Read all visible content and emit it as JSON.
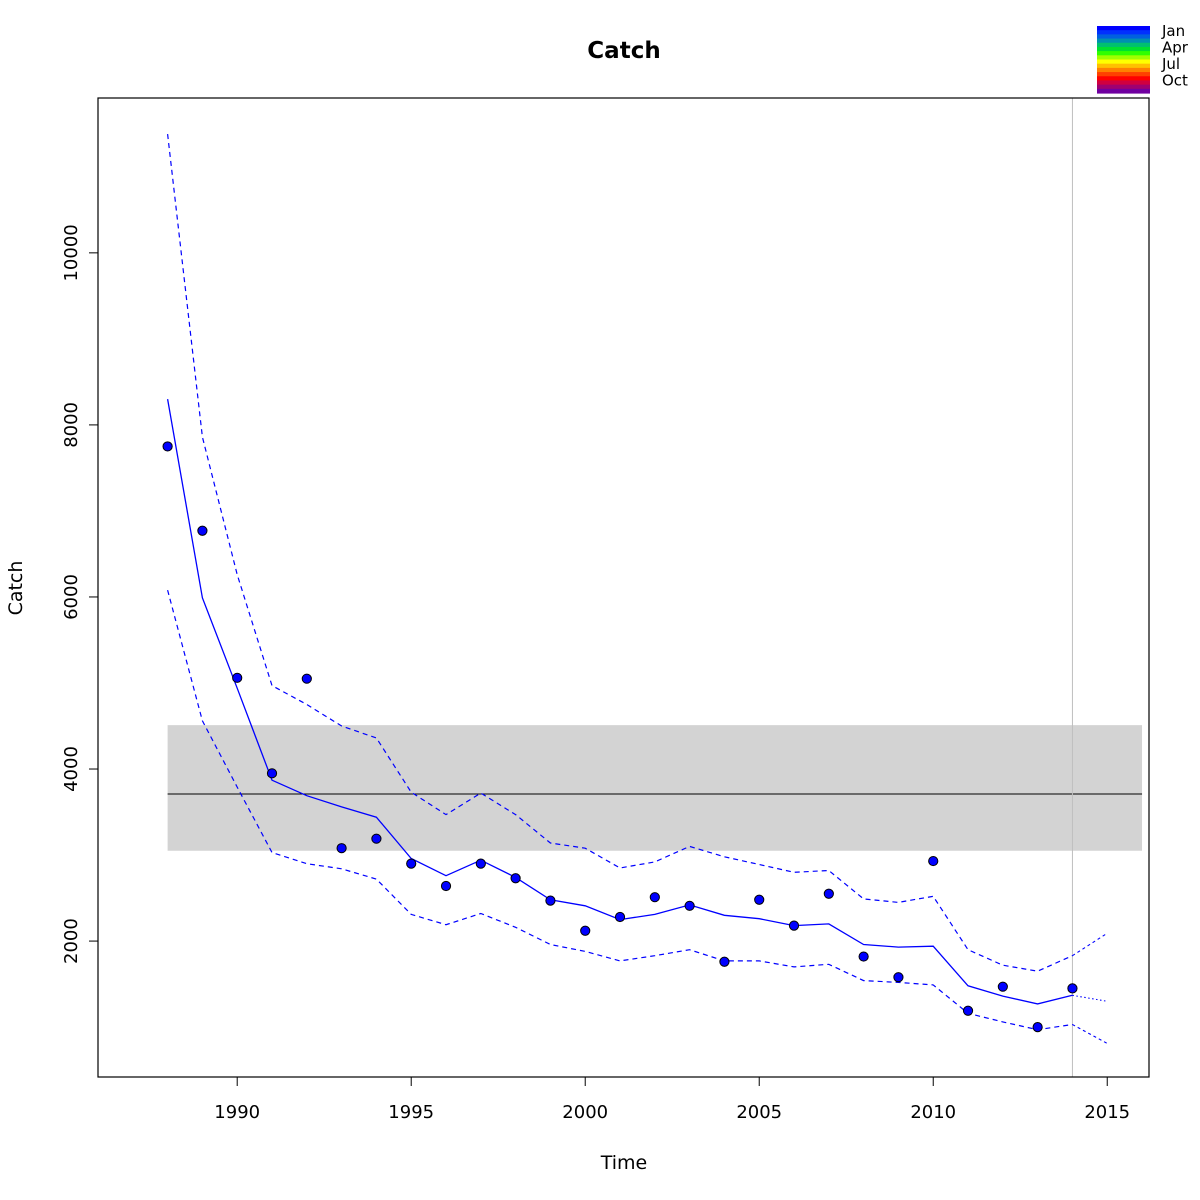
{
  "chart_data": {
    "type": "line",
    "title": "Catch",
    "xlabel": "Time",
    "ylabel": "Catch",
    "xlim": [
      1986,
      2016.2
    ],
    "ylim": [
      420,
      11800
    ],
    "x_ticks": [
      1990,
      1995,
      2000,
      2005,
      2010,
      2015
    ],
    "y_ticks": [
      2000,
      4000,
      6000,
      8000,
      10000
    ],
    "colors": {
      "fit": "#0000ff",
      "points": "#0000ff",
      "band": "#d3d3d3",
      "ref_line": "#000000",
      "vline": "#bebebe"
    },
    "observed": {
      "x": [
        1988,
        1989,
        1990,
        1991,
        1992,
        1993,
        1994,
        1995,
        1996,
        1997,
        1998,
        1999,
        2000,
        2001,
        2002,
        2003,
        2004,
        2005,
        2006,
        2007,
        2008,
        2009,
        2010,
        2011,
        2012,
        2013,
        2014
      ],
      "y": [
        7750,
        6770,
        5060,
        3950,
        5050,
        3080,
        3190,
        2900,
        2640,
        2900,
        2730,
        2470,
        2120,
        2280,
        2510,
        2410,
        1760,
        2480,
        2180,
        2550,
        1820,
        1580,
        2930,
        1190,
        1470,
        1000,
        1450
      ]
    },
    "fitted": {
      "x": [
        1988,
        1989,
        1990,
        1991,
        1992,
        1993,
        1994,
        1995,
        1996,
        1997,
        1998,
        1999,
        2000,
        2001,
        2002,
        2003,
        2004,
        2005,
        2006,
        2007,
        2008,
        2009,
        2010,
        2011,
        2012,
        2013,
        2014
      ],
      "y": [
        8300,
        5990,
        4940,
        3870,
        3690,
        3560,
        3440,
        2960,
        2760,
        2940,
        2740,
        2480,
        2410,
        2250,
        2310,
        2420,
        2300,
        2260,
        2180,
        2200,
        1960,
        1930,
        1940,
        1480,
        1360,
        1270,
        1370
      ]
    },
    "upper_ci": {
      "x": [
        1988,
        1989,
        1990,
        1991,
        1992,
        1993,
        1994,
        1995,
        1996,
        1997,
        1998,
        1999,
        2000,
        2001,
        2002,
        2003,
        2004,
        2005,
        2006,
        2007,
        2008,
        2009,
        2010,
        2011,
        2012,
        2013,
        2014
      ],
      "y": [
        11380,
        7860,
        6260,
        4970,
        4750,
        4500,
        4360,
        3730,
        3470,
        3720,
        3470,
        3140,
        3080,
        2850,
        2920,
        3100,
        2980,
        2890,
        2800,
        2820,
        2490,
        2450,
        2520,
        1900,
        1720,
        1650,
        1830
      ]
    },
    "lower_ci": {
      "x": [
        1988,
        1989,
        1990,
        1991,
        1992,
        1993,
        1994,
        1995,
        1996,
        1997,
        1998,
        1999,
        2000,
        2001,
        2002,
        2003,
        2004,
        2005,
        2006,
        2007,
        2008,
        2009,
        2010,
        2011,
        2012,
        2013,
        2014
      ],
      "y": [
        6080,
        4560,
        3790,
        3030,
        2900,
        2840,
        2720,
        2310,
        2190,
        2320,
        2160,
        1960,
        1880,
        1770,
        1830,
        1900,
        1770,
        1770,
        1700,
        1730,
        1540,
        1520,
        1490,
        1160,
        1060,
        970,
        1030
      ]
    },
    "forecast": {
      "x": [
        2014,
        2015
      ],
      "mean": [
        1370,
        1300
      ],
      "upper": [
        1830,
        2090
      ],
      "lower": [
        1030,
        810
      ]
    },
    "reference": {
      "value": 3710,
      "band": [
        3050,
        4510
      ],
      "x_range": [
        1988,
        2016
      ]
    },
    "vline_x": 2014,
    "grid": false,
    "legend": {
      "placement": "top-right",
      "labels": [
        "Jan",
        "Apr",
        "Jul",
        "Oct"
      ],
      "colors": [
        "#0000ff",
        "#0030ff",
        "#0060e0",
        "#0090b0",
        "#00c070",
        "#00e030",
        "#30ff00",
        "#a0ff00",
        "#ffff00",
        "#ffc000",
        "#ff8000",
        "#ff4000",
        "#ff0000",
        "#d00040",
        "#a00070",
        "#7000a0"
      ]
    }
  }
}
